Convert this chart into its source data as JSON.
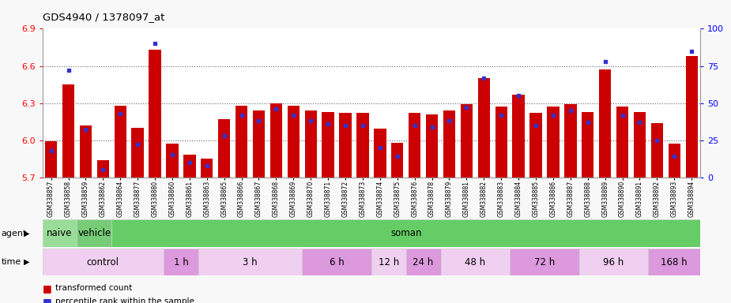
{
  "title": "GDS4940 / 1378097_at",
  "ylim": [
    5.7,
    6.9
  ],
  "ylim_right": [
    0,
    100
  ],
  "yticks_left": [
    5.7,
    6.0,
    6.3,
    6.6,
    6.9
  ],
  "yticks_right": [
    0,
    25,
    50,
    75,
    100
  ],
  "samples": [
    "GSM338857",
    "GSM338858",
    "GSM338859",
    "GSM338862",
    "GSM338864",
    "GSM338877",
    "GSM338880",
    "GSM338860",
    "GSM338861",
    "GSM338863",
    "GSM338865",
    "GSM338866",
    "GSM338867",
    "GSM338868",
    "GSM338869",
    "GSM338870",
    "GSM338871",
    "GSM338872",
    "GSM338873",
    "GSM338874",
    "GSM338875",
    "GSM338876",
    "GSM338878",
    "GSM338879",
    "GSM338881",
    "GSM338882",
    "GSM338883",
    "GSM338884",
    "GSM338885",
    "GSM338886",
    "GSM338887",
    "GSM338888",
    "GSM338889",
    "GSM338890",
    "GSM338891",
    "GSM338892",
    "GSM338893",
    "GSM338894"
  ],
  "bar_values": [
    5.99,
    6.45,
    6.12,
    5.84,
    6.28,
    6.1,
    6.73,
    5.97,
    5.88,
    5.85,
    6.17,
    6.28,
    6.24,
    6.3,
    6.28,
    6.24,
    6.23,
    6.22,
    6.22,
    6.09,
    5.98,
    6.22,
    6.21,
    6.24,
    6.29,
    6.5,
    6.27,
    6.37,
    6.22,
    6.27,
    6.29,
    6.23,
    6.57,
    6.27,
    6.23,
    6.14,
    5.97,
    6.68
  ],
  "percentile_values": [
    18,
    72,
    32,
    5,
    43,
    22,
    90,
    15,
    10,
    8,
    28,
    42,
    38,
    46,
    42,
    38,
    36,
    35,
    35,
    20,
    14,
    35,
    34,
    38,
    47,
    67,
    42,
    55,
    35,
    42,
    45,
    37,
    78,
    42,
    37,
    25,
    14,
    85
  ],
  "bar_color": "#cc0000",
  "percentile_color": "#3333cc",
  "baseline": 5.7,
  "agent_groups": [
    {
      "label": "naive",
      "start": 0,
      "end": 2,
      "color": "#99dd99"
    },
    {
      "label": "vehicle",
      "start": 2,
      "end": 4,
      "color": "#77cc77"
    },
    {
      "label": "soman",
      "start": 4,
      "end": 38,
      "color": "#66cc66"
    }
  ],
  "time_groups": [
    {
      "label": "control",
      "start": 0,
      "end": 7,
      "color": "#f0d0f0"
    },
    {
      "label": "1 h",
      "start": 7,
      "end": 9,
      "color": "#dd99dd"
    },
    {
      "label": "3 h",
      "start": 9,
      "end": 15,
      "color": "#f0d0f0"
    },
    {
      "label": "6 h",
      "start": 15,
      "end": 19,
      "color": "#dd99dd"
    },
    {
      "label": "12 h",
      "start": 19,
      "end": 21,
      "color": "#f0d0f0"
    },
    {
      "label": "24 h",
      "start": 21,
      "end": 23,
      "color": "#dd99dd"
    },
    {
      "label": "48 h",
      "start": 23,
      "end": 27,
      "color": "#f0d0f0"
    },
    {
      "label": "72 h",
      "start": 27,
      "end": 31,
      "color": "#dd99dd"
    },
    {
      "label": "96 h",
      "start": 31,
      "end": 35,
      "color": "#f0d0f0"
    },
    {
      "label": "168 h",
      "start": 35,
      "end": 38,
      "color": "#dd99dd"
    }
  ],
  "background_color": "#f8f8f8",
  "plot_area_bg": "#ffffff",
  "legend_items": [
    {
      "label": "transformed count",
      "color": "#cc0000"
    },
    {
      "label": "percentile rank within the sample",
      "color": "#3333cc"
    }
  ]
}
